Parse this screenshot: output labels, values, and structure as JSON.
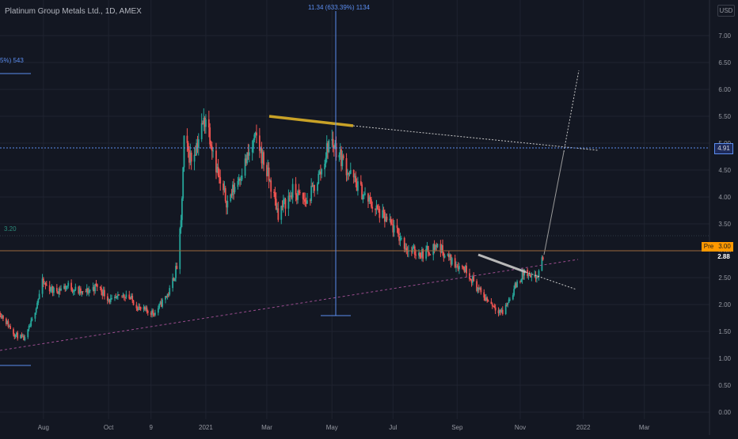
{
  "symbol_title": "Platinum Group Metals Ltd., 1D, AMEX",
  "currency_label": "USD",
  "measure_label": "11.34 (633.39%) 1134",
  "left_measure_label": "5%) 543",
  "price_line_label": "3.20",
  "tags": {
    "level_491": "4.91",
    "pre_label": "Pre",
    "pre_value": "3.00",
    "last_price": "2.88"
  },
  "colors": {
    "background": "#131722",
    "up": "#26a69a",
    "down": "#ef5350",
    "grid": "#1f2330",
    "axis_text": "#9598a1",
    "measure": "#5b8def",
    "trend_yellow": "#c9a227",
    "trend_gray": "#b8b8b8",
    "pre_market": "#ff9800",
    "support": "#9c4d8f"
  },
  "chart_data": {
    "type": "candlestick",
    "title": "Platinum Group Metals Ltd., 1D, AMEX",
    "currency": "USD",
    "y_range": [
      0,
      7.5
    ],
    "y_ticks": [
      "7.00",
      "6.50",
      "6.00",
      "5.50",
      "5.00",
      "4.50",
      "4.00",
      "3.50",
      "3.00",
      "2.50",
      "2.00",
      "1.50",
      "1.00",
      "0.50",
      "0.00"
    ],
    "x_ticks": [
      "Aug",
      "Oct",
      "9",
      "2021",
      "Mar",
      "May",
      "Jul",
      "Sep",
      "Nov",
      "2022",
      "Mar"
    ],
    "x_range": [
      "2020-06-16",
      "2022-05-03"
    ],
    "last_price": 2.88,
    "pre_market_price": 3.0,
    "horizontal_level": 4.91,
    "price_line": 3.2,
    "price_path": [
      [
        "2020-06-16",
        1.85
      ],
      [
        "2020-06-30",
        1.45
      ],
      [
        "2020-07-10",
        1.35
      ],
      [
        "2020-07-17",
        1.7
      ],
      [
        "2020-07-27",
        2.4
      ],
      [
        "2020-08-07",
        2.25
      ],
      [
        "2020-08-21",
        2.35
      ],
      [
        "2020-09-04",
        2.2
      ],
      [
        "2020-09-18",
        2.35
      ],
      [
        "2020-10-02",
        2.05
      ],
      [
        "2020-10-16",
        2.2
      ],
      [
        "2020-10-30",
        1.9
      ],
      [
        "2020-11-13",
        1.85
      ],
      [
        "2020-11-27",
        2.25
      ],
      [
        "2020-12-04",
        2.7
      ],
      [
        "2020-12-08",
        3.5
      ],
      [
        "2020-12-11",
        5.0
      ],
      [
        "2020-12-18",
        4.7
      ],
      [
        "2021-01-01",
        5.5
      ],
      [
        "2021-01-08",
        4.9
      ],
      [
        "2021-01-15",
        4.2
      ],
      [
        "2021-01-22",
        3.9
      ],
      [
        "2021-02-05",
        4.5
      ],
      [
        "2021-02-19",
        5.1
      ],
      [
        "2021-03-05",
        4.2
      ],
      [
        "2021-03-12",
        3.7
      ],
      [
        "2021-03-26",
        4.1
      ],
      [
        "2021-04-09",
        3.9
      ],
      [
        "2021-04-23",
        4.5
      ],
      [
        "2021-05-01",
        5.1
      ],
      [
        "2021-05-10",
        4.8
      ],
      [
        "2021-05-21",
        4.4
      ],
      [
        "2021-06-04",
        4.0
      ],
      [
        "2021-06-18",
        3.7
      ],
      [
        "2021-07-02",
        3.4
      ],
      [
        "2021-07-16",
        3.0
      ],
      [
        "2021-07-30",
        2.95
      ],
      [
        "2021-08-13",
        3.1
      ],
      [
        "2021-08-27",
        2.8
      ],
      [
        "2021-09-10",
        2.65
      ],
      [
        "2021-09-24",
        2.2
      ],
      [
        "2021-10-08",
        1.95
      ],
      [
        "2021-10-15",
        1.85
      ],
      [
        "2021-10-29",
        2.4
      ],
      [
        "2021-11-05",
        2.6
      ],
      [
        "2021-11-12",
        2.45
      ],
      [
        "2021-11-19",
        2.55
      ],
      [
        "2021-11-23",
        2.9
      ]
    ]
  }
}
